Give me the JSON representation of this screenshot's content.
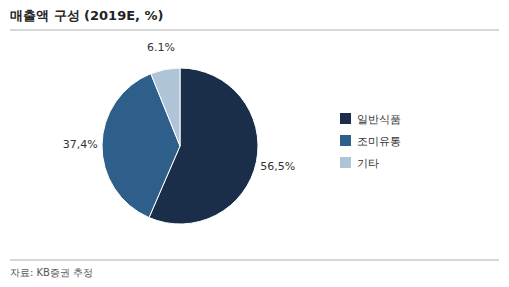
{
  "chart_data": {
    "type": "pie",
    "title": "매출액 구성 (2019E, %)",
    "categories": [
      "일반식품",
      "조미유통",
      "기타"
    ],
    "values": [
      56.5,
      37.4,
      6.1
    ],
    "value_labels": [
      "56,5%",
      "37,4%",
      "6.1%"
    ],
    "colors": [
      "#1a2e4a",
      "#2e5f8a",
      "#b0c4d8"
    ],
    "data_labels": true,
    "legend": "right",
    "annotations": [
      "자료: KB증권 추정"
    ]
  }
}
